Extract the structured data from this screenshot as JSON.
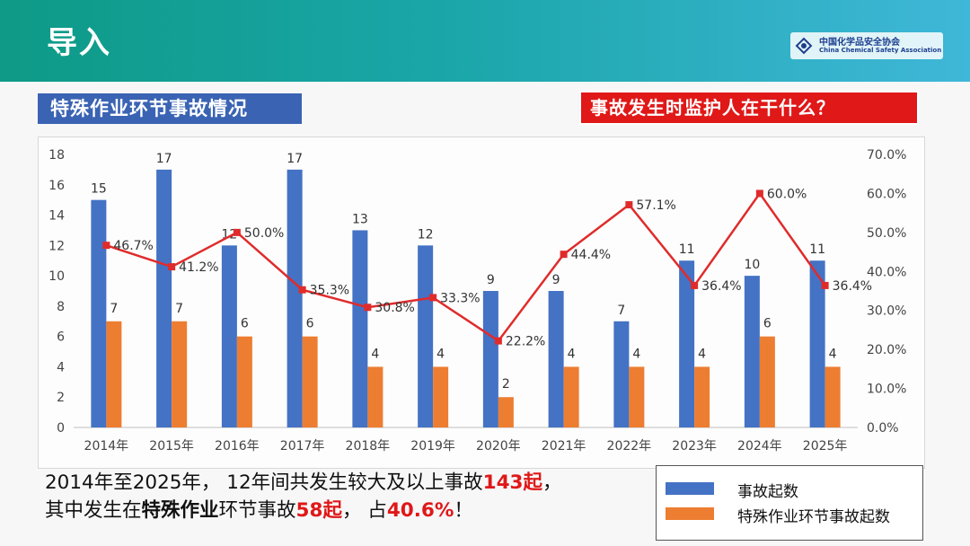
{
  "header": {
    "title": "导入"
  },
  "logo": {
    "name_cn": "中国化学品安全协会",
    "name_en": "China Chemical Safety Association"
  },
  "section_label": "特殊作业环节事故情况",
  "question_label": "事故发生时监护人在干什么？",
  "summary": {
    "line1_a": "2014年至2025年，  12年间共发生较大及以上事故",
    "line1_num": "143起",
    "line1_b": "，",
    "line2_a": "其中发生在",
    "line2_bold": "特殊作业",
    "line2_b": "环节事故",
    "line2_num": "58起",
    "line2_c": "，  占",
    "line2_pct": "40.6%",
    "line2_d": "！"
  },
  "colors": {
    "blue": "#4472c4",
    "orange": "#ed7d31",
    "red": "#e01818",
    "header_start": "#0e9a86",
    "header_end": "#3fb7d8"
  },
  "chart_data": {
    "type": "bar",
    "categories": [
      "2014年",
      "2015年",
      "2016年",
      "2017年",
      "2018年",
      "2019年",
      "2020年",
      "2021年",
      "2022年",
      "2023年",
      "2024年",
      "2025年"
    ],
    "series": [
      {
        "name": "事故起数",
        "type": "bar",
        "values": [
          15,
          17,
          12,
          17,
          13,
          12,
          9,
          9,
          7,
          11,
          10,
          11
        ]
      },
      {
        "name": "特殊作业环节事故起数",
        "type": "bar",
        "values": [
          7,
          7,
          6,
          6,
          4,
          4,
          2,
          4,
          4,
          4,
          6,
          4
        ]
      },
      {
        "type": "line",
        "axis": "right",
        "values": [
          46.7,
          41.2,
          50.0,
          35.3,
          30.8,
          33.3,
          22.2,
          44.4,
          57.1,
          36.4,
          60.0,
          36.4
        ]
      }
    ],
    "ylim": [
      0,
      18
    ],
    "yticks": [
      0,
      2,
      4,
      6,
      8,
      10,
      12,
      14,
      16,
      18
    ],
    "y2lim": [
      0,
      70
    ],
    "y2ticks": [
      "0.0%",
      "10.0%",
      "20.0%",
      "30.0%",
      "40.0%",
      "50.0%",
      "60.0%",
      "70.0%"
    ],
    "legend": "bottom-right",
    "grid": false
  }
}
